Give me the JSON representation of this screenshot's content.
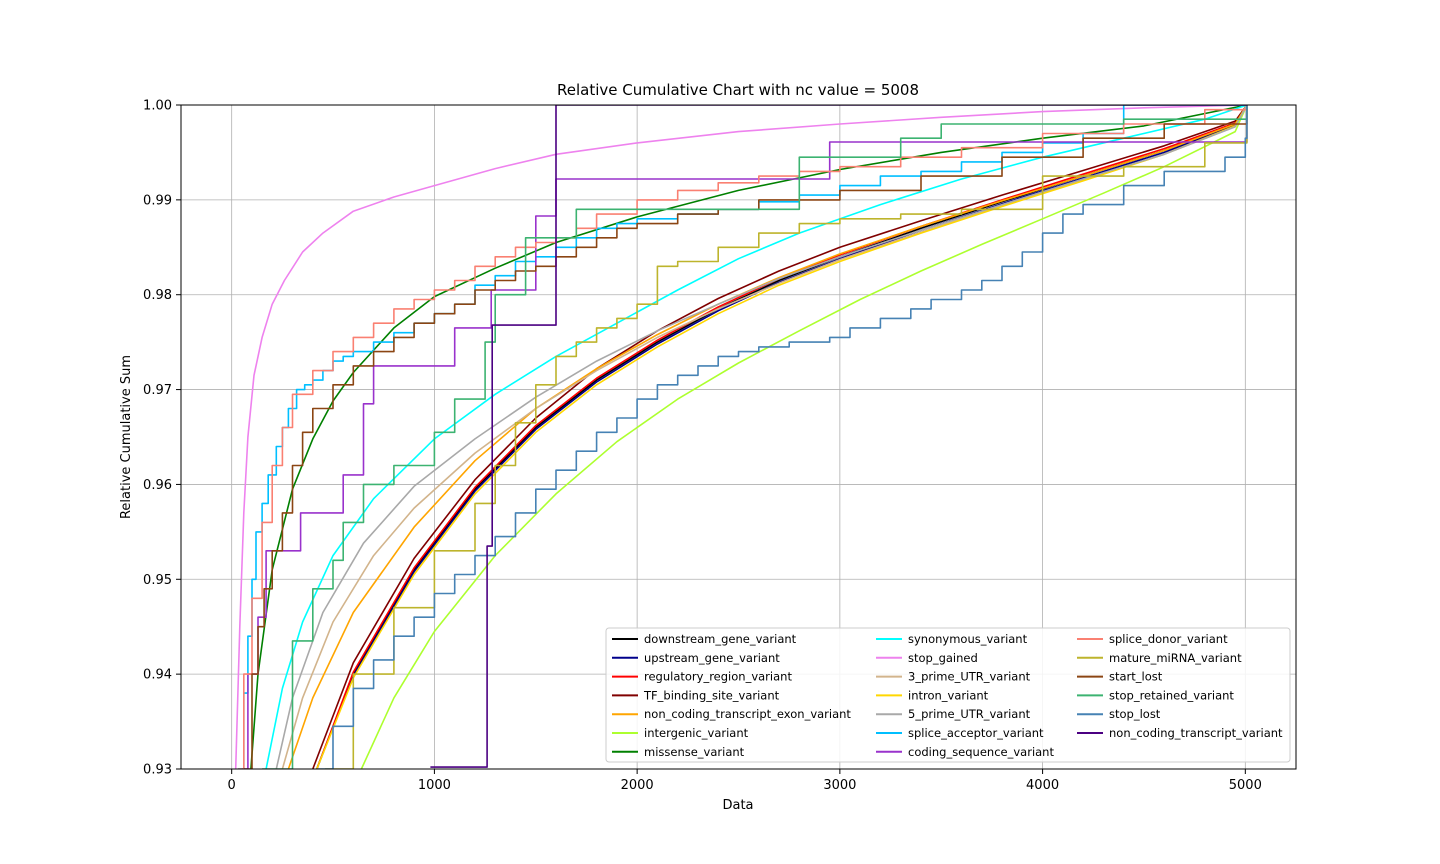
{
  "chart_data": {
    "type": "line",
    "title": "Relative Cumulative Chart with nc value = 5008",
    "xlabel": "Data",
    "ylabel": "Relative Cumulative Sum",
    "xlim": [
      -250,
      5250
    ],
    "ylim": [
      0.93,
      1.0
    ],
    "xticks": [
      0,
      1000,
      2000,
      3000,
      4000,
      5000
    ],
    "yticks": [
      0.93,
      0.94,
      0.95,
      0.96,
      0.97,
      0.98,
      0.99,
      1.0
    ],
    "xtick_labels": [
      "0",
      "1000",
      "2000",
      "3000",
      "4000",
      "5000"
    ],
    "ytick_labels": [
      "0.93",
      "0.94",
      "0.95",
      "0.96",
      "0.97",
      "0.98",
      "0.99",
      "1.00"
    ],
    "grid": true,
    "legend_position": "lower-right",
    "legend_columns": 3,
    "series": [
      {
        "name": "downstream_gene_variant",
        "color": "#000000",
        "step": false,
        "x": [
          420,
          600,
          900,
          1200,
          1500,
          1800,
          2100,
          2400,
          2700,
          3000,
          3400,
          3800,
          4200,
          4600,
          4950,
          5008
        ],
        "y": [
          0.93,
          0.94,
          0.951,
          0.9595,
          0.966,
          0.971,
          0.975,
          0.9785,
          0.9815,
          0.984,
          0.987,
          0.9898,
          0.9925,
          0.9952,
          0.998,
          1.0
        ]
      },
      {
        "name": "upstream_gene_variant",
        "color": "#00008b",
        "step": false,
        "x": [
          420,
          600,
          900,
          1200,
          1500,
          1800,
          2100,
          2400,
          2700,
          3000,
          3400,
          3800,
          4200,
          4600,
          4950,
          5008
        ],
        "y": [
          0.93,
          0.9398,
          0.9508,
          0.9593,
          0.9658,
          0.9708,
          0.9748,
          0.9783,
          0.9813,
          0.9838,
          0.9868,
          0.9896,
          0.9923,
          0.995,
          0.9979,
          1.0
        ]
      },
      {
        "name": "regulatory_region_variant",
        "color": "#ff0000",
        "step": false,
        "x": [
          420,
          600,
          900,
          1200,
          1500,
          1800,
          2100,
          2400,
          2700,
          3000,
          3400,
          3800,
          4200,
          4600,
          4950,
          5008
        ],
        "y": [
          0.93,
          0.9402,
          0.9512,
          0.9597,
          0.9662,
          0.9712,
          0.9752,
          0.9787,
          0.9817,
          0.9842,
          0.9872,
          0.99,
          0.9927,
          0.9954,
          0.9981,
          1.0
        ]
      },
      {
        "name": "TF_binding_site_variant",
        "color": "#800000",
        "step": false,
        "x": [
          400,
          600,
          900,
          1200,
          1500,
          1800,
          2100,
          2400,
          2700,
          3000,
          3400,
          3800,
          4200,
          4600,
          4950,
          5008
        ],
        "y": [
          0.93,
          0.9412,
          0.9522,
          0.9605,
          0.967,
          0.9722,
          0.9762,
          0.9796,
          0.9825,
          0.985,
          0.9878,
          0.9905,
          0.9931,
          0.9957,
          0.9983,
          1.0
        ]
      },
      {
        "name": "non_coding_transcript_exon_variant",
        "color": "#ffa500",
        "step": false,
        "x": [
          280,
          400,
          600,
          900,
          1200,
          1500,
          1800,
          2100,
          2400,
          2700,
          3000,
          3400,
          3800,
          4200,
          4600,
          4950,
          5008
        ],
        "y": [
          0.93,
          0.9375,
          0.9465,
          0.9555,
          0.9625,
          0.968,
          0.9722,
          0.9758,
          0.979,
          0.9818,
          0.9843,
          0.9872,
          0.9899,
          0.9925,
          0.9952,
          0.998,
          1.0
        ]
      },
      {
        "name": "intergenic_variant",
        "color": "#adff2f",
        "step": false,
        "x": [
          640,
          800,
          1000,
          1300,
          1600,
          1900,
          2200,
          2500,
          2800,
          3100,
          3400,
          3700,
          4000,
          4300,
          4600,
          4950,
          5008
        ],
        "y": [
          0.93,
          0.9375,
          0.9445,
          0.9525,
          0.959,
          0.9645,
          0.969,
          0.9728,
          0.9762,
          0.9795,
          0.9825,
          0.9853,
          0.988,
          0.9907,
          0.9935,
          0.9972,
          1.0
        ]
      },
      {
        "name": "missense_variant",
        "color": "#008000",
        "step": false,
        "x": [
          95,
          130,
          200,
          300,
          400,
          500,
          600,
          800,
          1000,
          1300,
          1600,
          2000,
          2500,
          3000,
          3500,
          4000,
          4500,
          5008
        ],
        "y": [
          0.93,
          0.94,
          0.951,
          0.9595,
          0.9648,
          0.9688,
          0.9718,
          0.9765,
          0.9798,
          0.9828,
          0.9855,
          0.9882,
          0.991,
          0.9932,
          0.995,
          0.9965,
          0.9978,
          1.0
        ]
      },
      {
        "name": "synonymous_variant",
        "color": "#00ffff",
        "step": false,
        "x": [
          170,
          250,
          350,
          500,
          700,
          1000,
          1300,
          1600,
          1900,
          2200,
          2500,
          2800,
          3200,
          3600,
          4000,
          4400,
          4800,
          5008
        ],
        "y": [
          0.93,
          0.9385,
          0.9455,
          0.9525,
          0.9585,
          0.9648,
          0.9695,
          0.9735,
          0.977,
          0.9805,
          0.9838,
          0.9865,
          0.9895,
          0.9922,
          0.9945,
          0.9965,
          0.9985,
          1.0
        ]
      },
      {
        "name": "stop_gained",
        "color": "#ee82ee",
        "step": false,
        "x": [
          20,
          40,
          60,
          80,
          110,
          150,
          200,
          260,
          350,
          450,
          600,
          800,
          1000,
          1300,
          1600,
          2000,
          2500,
          3000,
          3500,
          4000,
          4500,
          5008
        ],
        "y": [
          0.93,
          0.945,
          0.957,
          0.965,
          0.9715,
          0.9755,
          0.979,
          0.9815,
          0.9845,
          0.9865,
          0.9888,
          0.9903,
          0.9915,
          0.9933,
          0.9948,
          0.996,
          0.9972,
          0.998,
          0.9987,
          0.9993,
          0.9997,
          1.0
        ]
      },
      {
        "name": "3_prime_UTR_variant",
        "color": "#d2b48c",
        "step": false,
        "x": [
          250,
          350,
          500,
          700,
          900,
          1200,
          1500,
          1800,
          2100,
          2400,
          2700,
          3000,
          3400,
          3800,
          4200,
          4600,
          4950,
          5008
        ],
        "y": [
          0.93,
          0.9375,
          0.9455,
          0.9525,
          0.9575,
          0.9633,
          0.968,
          0.972,
          0.9755,
          0.9785,
          0.9812,
          0.9837,
          0.9866,
          0.9894,
          0.9921,
          0.9948,
          0.9977,
          1.0
        ]
      },
      {
        "name": "intron_variant",
        "color": "#ffd700",
        "step": false,
        "x": [
          420,
          600,
          900,
          1200,
          1500,
          1800,
          2100,
          2400,
          2700,
          3000,
          3400,
          3800,
          4200,
          4600,
          4950,
          5008
        ],
        "y": [
          0.93,
          0.9396,
          0.9505,
          0.959,
          0.9655,
          0.9705,
          0.9745,
          0.978,
          0.981,
          0.9835,
          0.9865,
          0.9893,
          0.992,
          0.9948,
          0.9978,
          1.0
        ]
      },
      {
        "name": "5_prime_UTR_variant",
        "color": "#a9a9a9",
        "step": false,
        "x": [
          220,
          300,
          450,
          650,
          900,
          1200,
          1500,
          1800,
          2100,
          2400,
          2700,
          3000,
          3400,
          3800,
          4200,
          4600,
          4950,
          5008
        ],
        "y": [
          0.93,
          0.9375,
          0.9465,
          0.9538,
          0.9598,
          0.9648,
          0.9692,
          0.973,
          0.9762,
          0.979,
          0.9817,
          0.984,
          0.9868,
          0.9895,
          0.9922,
          0.9948,
          0.9977,
          1.0
        ]
      },
      {
        "name": "splice_acceptor_variant",
        "color": "#00bfff",
        "step": true,
        "x": [
          30,
          60,
          80,
          100,
          120,
          150,
          180,
          220,
          250,
          280,
          320,
          360,
          400,
          450,
          500,
          550,
          600,
          700,
          800,
          900,
          1000,
          1100,
          1200,
          1300,
          1400,
          1500,
          1600,
          1700,
          1800,
          1900,
          2000,
          2200,
          2400,
          2600,
          2800,
          3000,
          3200,
          3400,
          3600,
          3800,
          4000,
          4200,
          4400,
          4700,
          5008
        ],
        "y": [
          0.93,
          0.938,
          0.944,
          0.95,
          0.955,
          0.958,
          0.961,
          0.964,
          0.966,
          0.968,
          0.97,
          0.9705,
          0.971,
          0.972,
          0.973,
          0.9735,
          0.974,
          0.975,
          0.976,
          0.977,
          0.978,
          0.979,
          0.981,
          0.982,
          0.9835,
          0.984,
          0.985,
          0.986,
          0.987,
          0.9875,
          0.988,
          0.9885,
          0.989,
          0.9898,
          0.9905,
          0.9915,
          0.9925,
          0.993,
          0.994,
          0.995,
          0.996,
          0.997,
          1.0,
          1.0,
          1.0
        ]
      },
      {
        "name": "coding_sequence_variant",
        "color": "#9932cc",
        "step": true,
        "x": [
          50,
          80,
          130,
          170,
          340,
          550,
          650,
          700,
          1100,
          1280,
          1500,
          1600,
          2500,
          2950,
          5008
        ],
        "y": [
          0.93,
          0.94,
          0.946,
          0.953,
          0.957,
          0.961,
          0.9685,
          0.9725,
          0.9765,
          0.9805,
          0.9883,
          0.9922,
          0.9922,
          0.9961,
          1.0
        ]
      },
      {
        "name": "splice_donor_variant",
        "color": "#fa8072",
        "step": true,
        "x": [
          30,
          60,
          100,
          150,
          200,
          250,
          300,
          400,
          500,
          600,
          700,
          800,
          900,
          1000,
          1100,
          1200,
          1300,
          1400,
          1500,
          1600,
          1700,
          1800,
          2000,
          2200,
          2400,
          2600,
          2800,
          3000,
          3300,
          3600,
          4000,
          4400,
          4800,
          5008
        ],
        "y": [
          0.93,
          0.94,
          0.948,
          0.956,
          0.962,
          0.966,
          0.9695,
          0.972,
          0.974,
          0.9755,
          0.977,
          0.9785,
          0.9795,
          0.9805,
          0.9815,
          0.983,
          0.984,
          0.985,
          0.9855,
          0.986,
          0.987,
          0.9885,
          0.99,
          0.991,
          0.9918,
          0.9925,
          0.993,
          0.9935,
          0.9945,
          0.9955,
          0.997,
          0.998,
          0.9995,
          1.0
        ]
      },
      {
        "name": "mature_miRNA_variant",
        "color": "#bdb42c",
        "step": true,
        "x": [
          460,
          600,
          800,
          1000,
          1200,
          1300,
          1400,
          1500,
          1600,
          1700,
          1800,
          1900,
          2000,
          2100,
          2200,
          2400,
          2600,
          2800,
          3000,
          3300,
          3600,
          4000,
          4400,
          4800,
          5008
        ],
        "y": [
          0.93,
          0.94,
          0.947,
          0.953,
          0.958,
          0.962,
          0.9665,
          0.9705,
          0.9735,
          0.975,
          0.9765,
          0.9775,
          0.979,
          0.983,
          0.9835,
          0.985,
          0.9865,
          0.9875,
          0.988,
          0.9885,
          0.989,
          0.9925,
          0.9935,
          0.996,
          1.0
        ]
      },
      {
        "name": "start_lost",
        "color": "#8b4513",
        "step": true,
        "x": [
          60,
          100,
          130,
          160,
          200,
          250,
          300,
          350,
          400,
          500,
          600,
          700,
          800,
          900,
          1000,
          1100,
          1200,
          1300,
          1400,
          1500,
          1600,
          1700,
          1800,
          1900,
          2000,
          2200,
          2400,
          2600,
          3000,
          3400,
          3800,
          4200,
          4600,
          5008
        ],
        "y": [
          0.93,
          0.94,
          0.945,
          0.949,
          0.953,
          0.957,
          0.962,
          0.9655,
          0.968,
          0.9705,
          0.9725,
          0.974,
          0.9755,
          0.977,
          0.978,
          0.979,
          0.9805,
          0.9815,
          0.9825,
          0.983,
          0.984,
          0.985,
          0.986,
          0.987,
          0.9875,
          0.9885,
          0.989,
          0.99,
          0.991,
          0.9925,
          0.9945,
          0.9965,
          0.998,
          1.0
        ]
      },
      {
        "name": "stop_retained_variant",
        "color": "#3cb371",
        "step": true,
        "x": [
          150,
          300,
          400,
          500,
          550,
          650,
          800,
          1000,
          1100,
          1250,
          1300,
          1450,
          1700,
          2000,
          2800,
          3300,
          3500,
          4400,
          5008
        ],
        "y": [
          0.93,
          0.9435,
          0.949,
          0.952,
          0.956,
          0.96,
          0.962,
          0.9655,
          0.969,
          0.975,
          0.98,
          0.986,
          0.989,
          0.989,
          0.9945,
          0.9965,
          0.998,
          0.9985,
          1.0
        ]
      },
      {
        "name": "stop_lost",
        "color": "#4682b4",
        "step": true,
        "x": [
          420,
          500,
          600,
          700,
          800,
          900,
          1000,
          1100,
          1200,
          1300,
          1400,
          1500,
          1600,
          1700,
          1800,
          1900,
          2000,
          2100,
          2200,
          2300,
          2400,
          2500,
          2600,
          2750,
          2950,
          3050,
          3200,
          3350,
          3450,
          3600,
          3700,
          3800,
          3900,
          4000,
          4100,
          4200,
          4400,
          4600,
          4900,
          5000,
          5008
        ],
        "y": [
          0.93,
          0.9345,
          0.9385,
          0.9415,
          0.944,
          0.946,
          0.9485,
          0.9505,
          0.9525,
          0.9545,
          0.957,
          0.9595,
          0.9615,
          0.9635,
          0.9655,
          0.967,
          0.969,
          0.9705,
          0.9715,
          0.9725,
          0.9735,
          0.974,
          0.9745,
          0.975,
          0.9755,
          0.9765,
          0.9775,
          0.9785,
          0.9795,
          0.9805,
          0.9815,
          0.983,
          0.9845,
          0.9865,
          0.9885,
          0.9895,
          0.9915,
          0.993,
          0.9945,
          0.9965,
          1.0
        ]
      },
      {
        "name": "non_coding_transcript_variant",
        "color": "#4b0082",
        "step": true,
        "x": [
          980,
          1260,
          1285,
          1600,
          5008
        ],
        "y": [
          0.9302,
          0.9535,
          0.9768,
          1.0,
          1.0
        ]
      }
    ]
  }
}
